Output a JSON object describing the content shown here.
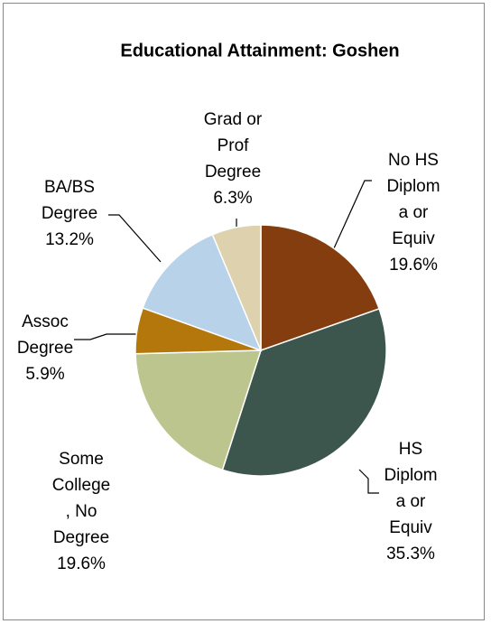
{
  "chart_data": {
    "type": "pie",
    "title": "Educational Attainment: Goshen",
    "categories": [
      "No HS\nDiplom\na or\nEquiv",
      "HS\nDiplom\na or\nEquiv",
      "Some\nCollege\n, No\nDegree",
      "Assoc\nDegree",
      "BA/BS\nDegree",
      "Grad or\nProf\nDegree"
    ],
    "values": [
      19.6,
      35.3,
      19.6,
      5.9,
      13.2,
      6.3
    ],
    "value_labels": [
      "19.6%",
      "35.3%",
      "19.6%",
      "5.9%",
      "13.2%",
      "6.3%"
    ],
    "colors": [
      "#843d0f",
      "#3c564d",
      "#bcc58e",
      "#b4770b",
      "#b8d2e9",
      "#ddd1ae"
    ]
  }
}
